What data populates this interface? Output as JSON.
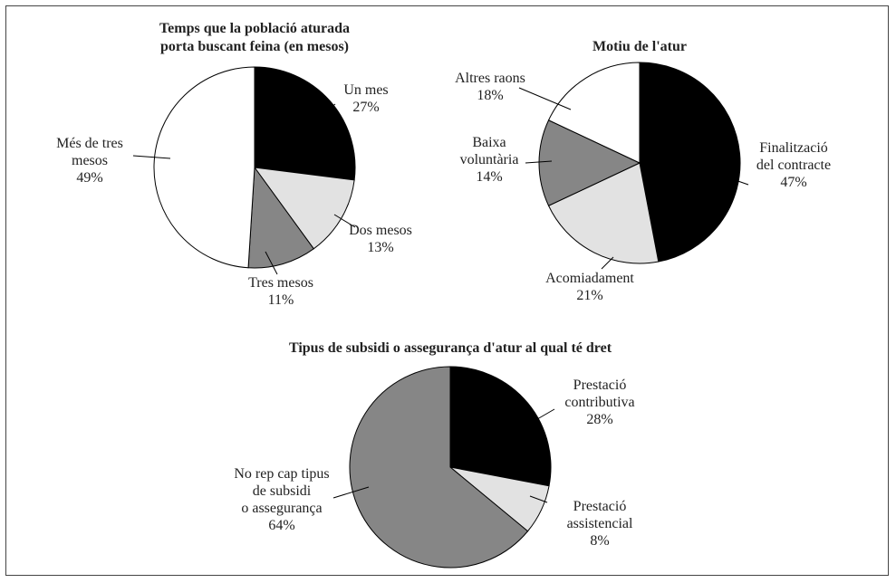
{
  "chart_data": [
    {
      "type": "pie",
      "title": "Temps que la població aturada porta buscant feina (en mesos)",
      "title_lines": [
        "Temps que la població aturada",
        "porta buscant feina (en mesos)"
      ],
      "slices": [
        {
          "label": "Un mes",
          "label_lines": [
            "Un mes"
          ],
          "value": 27,
          "value_text": "27%",
          "color": "#000000"
        },
        {
          "label": "Dos mesos",
          "label_lines": [
            "Dos mesos"
          ],
          "value": 13,
          "value_text": "13%",
          "color": "#e2e2e2"
        },
        {
          "label": "Tres mesos",
          "label_lines": [
            "Tres mesos"
          ],
          "value": 11,
          "value_text": "11%",
          "color": "#868686"
        },
        {
          "label": "Més de tres mesos",
          "label_lines": [
            "Més de tres",
            "mesos"
          ],
          "value": 49,
          "value_text": "49%",
          "color": "#ffffff"
        }
      ],
      "start": "top",
      "direction": "clockwise"
    },
    {
      "type": "pie",
      "title": "Motiu de l'atur",
      "title_lines": [
        "Motiu de l'atur"
      ],
      "slices": [
        {
          "label": "Finalització del contracte",
          "label_lines": [
            "Finalització",
            "del contracte"
          ],
          "value": 47,
          "value_text": "47%",
          "color": "#000000"
        },
        {
          "label": "Acomiadament",
          "label_lines": [
            "Acomiadament"
          ],
          "value": 21,
          "value_text": "21%",
          "color": "#e2e2e2"
        },
        {
          "label": "Baixa voluntària",
          "label_lines": [
            "Baixa",
            "voluntària"
          ],
          "value": 14,
          "value_text": "14%",
          "color": "#868686"
        },
        {
          "label": "Altres raons",
          "label_lines": [
            "Altres raons"
          ],
          "value": 18,
          "value_text": "18%",
          "color": "#ffffff"
        }
      ],
      "start": "top",
      "direction": "clockwise"
    },
    {
      "type": "pie",
      "title": "Tipus de subsidi o assegurança d'atur al qual té dret",
      "title_lines": [
        "Tipus de subsidi o assegurança d'atur al qual té dret"
      ],
      "slices": [
        {
          "label": "Prestació contributiva",
          "label_lines": [
            "Prestació",
            "contributiva"
          ],
          "value": 28,
          "value_text": "28%",
          "color": "#000000"
        },
        {
          "label": "Prestació assistencial",
          "label_lines": [
            "Prestació",
            "assistencial"
          ],
          "value": 8,
          "value_text": "8%",
          "color": "#e2e2e2"
        },
        {
          "label": "No rep cap tipus de subsidi o assegurança",
          "label_lines": [
            "No rep cap tipus",
            "de subsidi",
            "o assegurança"
          ],
          "value": 64,
          "value_text": "64%",
          "color": "#868686"
        }
      ],
      "start": "top",
      "direction": "clockwise"
    }
  ]
}
